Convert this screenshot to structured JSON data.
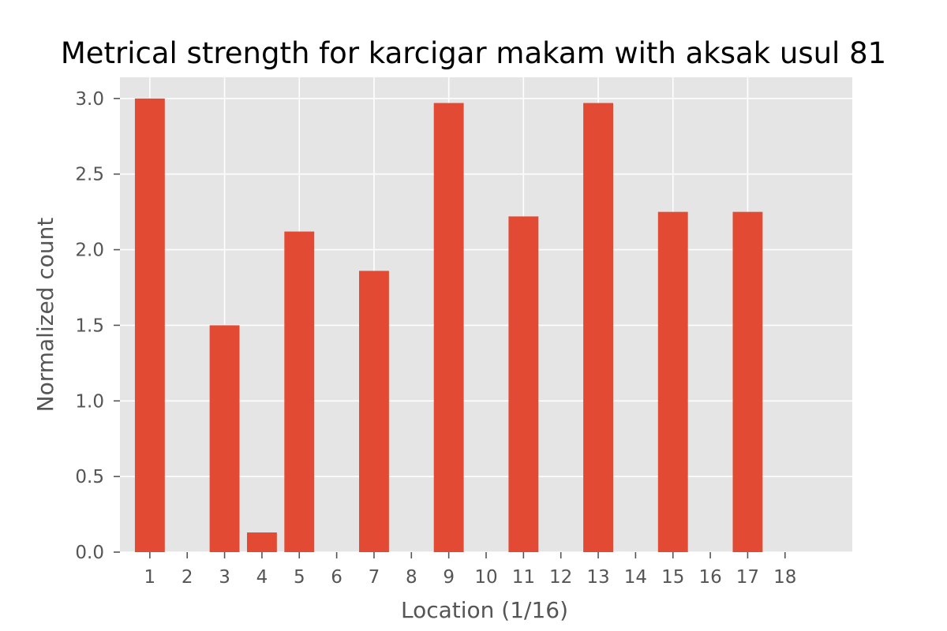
{
  "chart_data": {
    "type": "bar",
    "title": "Metrical strength for karcigar makam with aksak usul 81",
    "xlabel": "Location (1/16)",
    "ylabel": "Normalized count",
    "categories": [
      "1",
      "2",
      "3",
      "4",
      "5",
      "6",
      "7",
      "8",
      "9",
      "10",
      "11",
      "12",
      "13",
      "14",
      "15",
      "16",
      "17",
      "18"
    ],
    "values": [
      3.0,
      0,
      1.5,
      0.13,
      2.12,
      0,
      1.86,
      0,
      2.97,
      0,
      2.22,
      0,
      2.97,
      0,
      2.25,
      0,
      2.25,
      0
    ],
    "xlim": [
      0.2,
      19.8
    ],
    "ylim": [
      0,
      3.14
    ],
    "yticks": [
      0.0,
      0.5,
      1.0,
      1.5,
      2.0,
      2.5,
      3.0
    ],
    "ytick_labels": [
      "0.0",
      "0.5",
      "1.0",
      "1.5",
      "2.0",
      "2.5",
      "3.0"
    ],
    "grid": true,
    "style": "ggplot",
    "colors": {
      "bar": "#E24A33",
      "background": "#E5E5E5",
      "grid": "#FFFFFF",
      "tick_text": "#555555"
    }
  }
}
